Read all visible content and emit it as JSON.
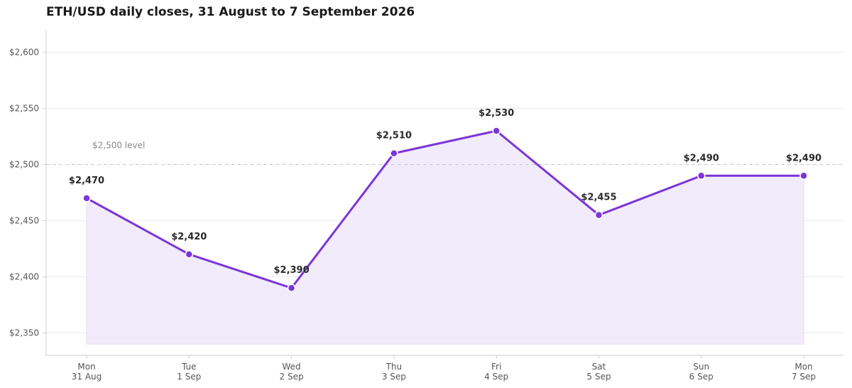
{
  "chart_data": {
    "type": "line",
    "title": "ETH/USD daily closes, 31 August to 7 September 2026",
    "xlabel": "",
    "ylabel": "",
    "categories": [
      [
        "Mon",
        "31 Aug"
      ],
      [
        "Tue",
        "1 Sep"
      ],
      [
        "Wed",
        "2 Sep"
      ],
      [
        "Thu",
        "3 Sep"
      ],
      [
        "Fri",
        "4 Sep"
      ],
      [
        "Sat",
        "5 Sep"
      ],
      [
        "Sun",
        "6 Sep"
      ],
      [
        "Mon",
        "7 Sep"
      ]
    ],
    "series": [
      {
        "values": [
          2470,
          2420,
          2390,
          2510,
          2530,
          2455,
          2490,
          2490
        ],
        "data_labels": [
          "$2,470",
          "$2,420",
          "$2,390",
          "$2,510",
          "$2,530",
          "$2,455",
          "$2,490",
          "$2,490"
        ]
      }
    ],
    "ylim": [
      2330,
      2620
    ],
    "area_baseline": 2340,
    "y_ticks": [
      2350,
      2400,
      2450,
      2500,
      2550,
      2600
    ],
    "y_tick_labels": [
      "$2,350",
      "$2,400",
      "$2,450",
      "$2,500",
      "$2,550",
      "$2,600"
    ],
    "reference_line": {
      "value": 2500,
      "label": "$2,500 level"
    },
    "grid": true,
    "legend": "none",
    "colors": {
      "line": "#7b35d9",
      "area": "#f1ebfb",
      "grid": "#ececec",
      "reference": "#c8c8c8",
      "axis": "#cfcfcf"
    }
  }
}
